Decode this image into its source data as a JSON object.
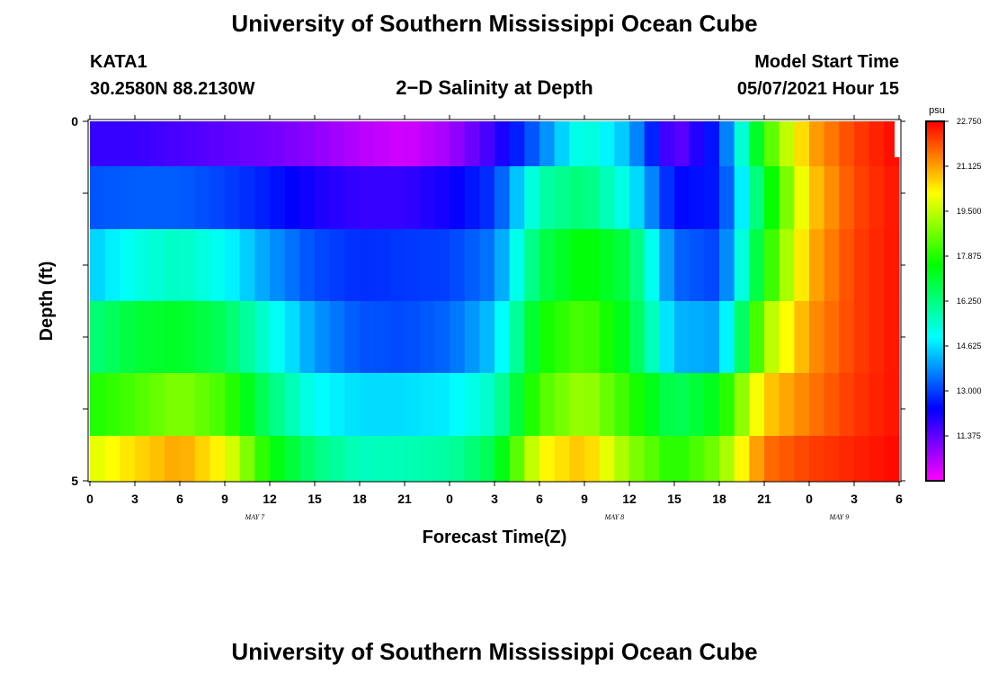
{
  "header": {
    "title": "University of Southern Mississippi Ocean Cube",
    "station": "KATA1",
    "coords": "30.2580N  88.2130W",
    "subtitle": "2−D Salinity at Depth",
    "model_start_label": "Model Start Time",
    "model_start_value": "05/07/2021 Hour 15"
  },
  "footer": {
    "title": "University of Southern Mississippi Ocean Cube"
  },
  "chart_data": {
    "type": "heatmap",
    "xlabel": "Forecast Time(Z)",
    "ylabel": "Depth (ft)",
    "x_tick_labels": [
      "0",
      "3",
      "6",
      "9",
      "12",
      "15",
      "18",
      "21",
      "0",
      "3",
      "6",
      "9",
      "12",
      "15",
      "18",
      "21",
      "0",
      "3",
      "6"
    ],
    "x_date_labels": [
      {
        "label": "MAY 7",
        "at_hour": 11
      },
      {
        "label": "MAY 8",
        "at_hour": 35
      },
      {
        "label": "MAY 9",
        "at_hour": 50
      }
    ],
    "y_tick_labels": [
      "0",
      "5"
    ],
    "depth_range_ft": [
      0,
      5
    ],
    "hour_range": [
      0,
      54
    ],
    "colorbar": {
      "unit": "psu",
      "range": [
        9.75,
        22.75
      ],
      "tick_values": [
        "22.750",
        "21.125",
        "19.500",
        "17.875",
        "16.250",
        "14.625",
        "13.000",
        "11.375"
      ],
      "colors": [
        "#ff00ff",
        "#8000ff",
        "#0000ff",
        "#0080ff",
        "#00ffff",
        "#00ff80",
        "#00ff00",
        "#80ff00",
        "#ffff00",
        "#ff8000",
        "#ff0000"
      ]
    },
    "row_depths_ft": [
      0.25,
      1.0,
      2.0,
      3.0,
      4.0,
      4.75
    ],
    "column_hours": [
      0,
      3,
      6,
      9,
      12,
      15,
      18,
      21,
      24,
      27,
      30,
      33,
      36,
      39,
      42,
      45,
      48,
      51,
      54
    ],
    "salinity_psu": [
      [
        11.8,
        11.8,
        11.6,
        11.4,
        11.2,
        10.9,
        10.5,
        10.2,
        10.7,
        11.8,
        13.5,
        15.5,
        14.2,
        11.2,
        12.8,
        18.0,
        21.0,
        22.1,
        22.7
      ],
      [
        13.2,
        13.3,
        13.3,
        13.0,
        12.6,
        12.1,
        11.8,
        11.8,
        12.2,
        12.9,
        15.8,
        16.4,
        15.0,
        12.4,
        12.6,
        17.0,
        20.6,
        22.0,
        22.6
      ],
      [
        14.4,
        15.2,
        15.6,
        15.0,
        13.9,
        13.1,
        12.8,
        12.9,
        13.0,
        13.6,
        16.7,
        17.6,
        16.8,
        13.4,
        13.0,
        17.6,
        20.9,
        22.1,
        22.6
      ],
      [
        16.3,
        17.0,
        17.2,
        16.6,
        15.3,
        13.9,
        13.2,
        13.1,
        13.4,
        14.4,
        17.6,
        18.4,
        17.1,
        14.2,
        14.0,
        19.1,
        21.2,
        22.1,
        22.6
      ],
      [
        17.8,
        18.3,
        18.9,
        18.2,
        16.4,
        15.0,
        14.6,
        14.6,
        14.8,
        15.6,
        18.3,
        19.2,
        18.0,
        16.6,
        17.4,
        20.6,
        21.5,
        22.2,
        22.6
      ],
      [
        19.8,
        20.5,
        21.1,
        20.1,
        17.6,
        16.3,
        15.6,
        15.7,
        15.9,
        16.8,
        20.1,
        20.8,
        19.0,
        17.8,
        18.8,
        21.6,
        22.1,
        22.4,
        22.7
      ]
    ]
  }
}
